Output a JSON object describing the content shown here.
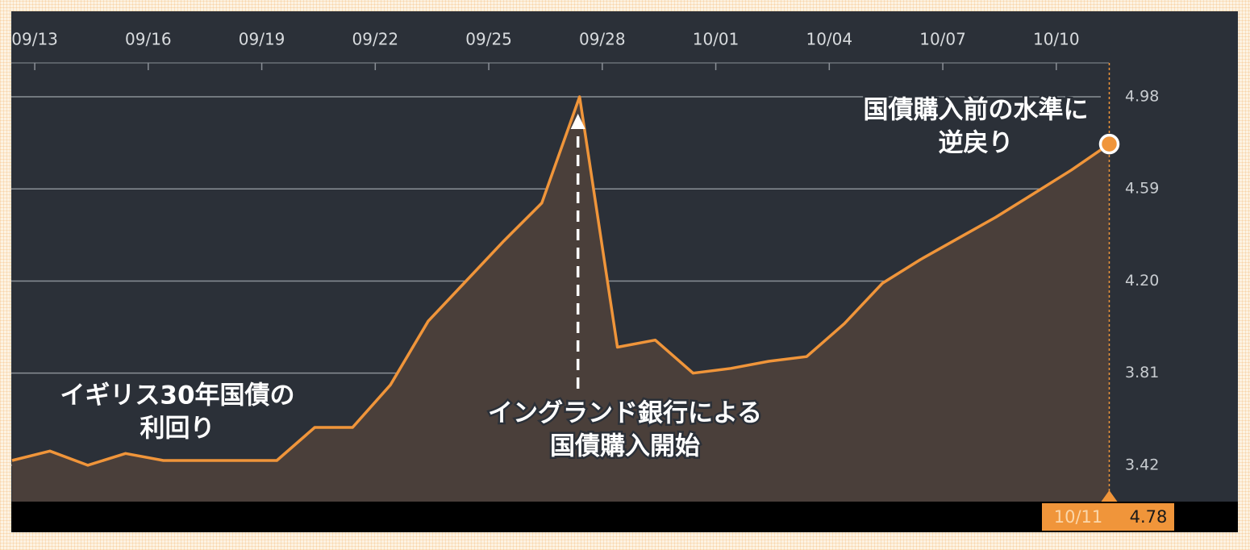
{
  "chart_data": {
    "type": "area",
    "color": "#f0953a",
    "fill": "#4a3f3a",
    "x": [
      -0.6,
      0.4,
      1.4,
      2.4,
      3.4,
      4.4,
      5.4,
      6.4,
      7.4,
      8.4,
      9.4,
      10.4,
      11.4,
      12.4,
      13.4,
      14.4,
      15.4,
      16.4,
      17.4,
      18.4,
      19.4,
      20.4,
      21.4,
      22.4,
      23.4,
      24.4,
      25.4,
      26.4,
      27.4,
      28.4
    ],
    "values": [
      3.44,
      3.48,
      3.42,
      3.47,
      3.44,
      3.44,
      3.44,
      3.44,
      3.58,
      3.58,
      3.76,
      4.03,
      4.2,
      4.37,
      4.53,
      4.98,
      3.92,
      3.95,
      3.81,
      3.83,
      3.86,
      3.88,
      4.02,
      4.19,
      4.29,
      4.38,
      4.47,
      4.57,
      4.67,
      4.78
    ],
    "xlim": [
      -0.62,
      31.8
    ],
    "ylim": [
      3.266,
      5.342
    ],
    "xticks": [
      {
        "value": 0,
        "label": "09/13"
      },
      {
        "value": 3,
        "label": "09/16"
      },
      {
        "value": 6,
        "label": "09/19"
      },
      {
        "value": 9,
        "label": "09/22"
      },
      {
        "value": 12,
        "label": "09/25"
      },
      {
        "value": 15,
        "label": "09/28"
      },
      {
        "value": 18,
        "label": "10/01"
      },
      {
        "value": 21,
        "label": "10/04"
      },
      {
        "value": 24,
        "label": "10/07"
      },
      {
        "value": 27,
        "label": "10/10"
      }
    ],
    "yticks": [
      3.42,
      3.81,
      {
        "value": 4.2,
        "label": "4.20"
      },
      4.59,
      4.98
    ],
    "grid": true,
    "annotations": [
      {
        "lines": [
          "イギリス30年国債の",
          "利回り"
        ]
      },
      {
        "lines": [
          "イングランド銀行による",
          "国債購入開始"
        ]
      },
      {
        "lines": [
          "国債購入前の水準に",
          "逆戻り"
        ]
      }
    ],
    "cursor": {
      "x_label": "10/11"
    }
  }
}
